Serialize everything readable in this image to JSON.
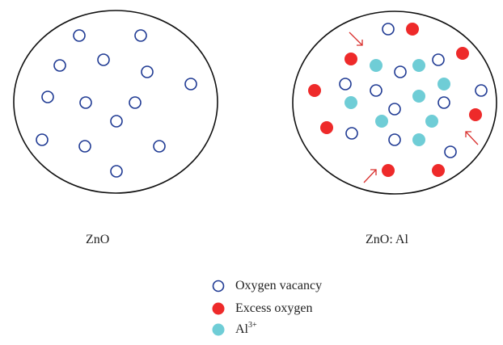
{
  "panels": [
    {
      "caption": "ZnO"
    },
    {
      "caption": "ZnO: Al"
    }
  ],
  "legend": [
    {
      "label": "Oxygen vacancy",
      "icon": "open-circle-icon",
      "color": "#1f3a93"
    },
    {
      "label": "Excess oxygen",
      "icon": "red-dot-icon",
      "color": "#ee2a2a"
    },
    {
      "label": "Al",
      "superscript": "3+",
      "icon": "cyan-dot-icon",
      "color": "#6fcdd6"
    }
  ],
  "colors": {
    "boundary": "#111111",
    "vacancy": "#1f3a93",
    "excess_oxygen": "#ee2a2a",
    "aluminum": "#6fcdd6",
    "arrow": "#d9302e"
  }
}
